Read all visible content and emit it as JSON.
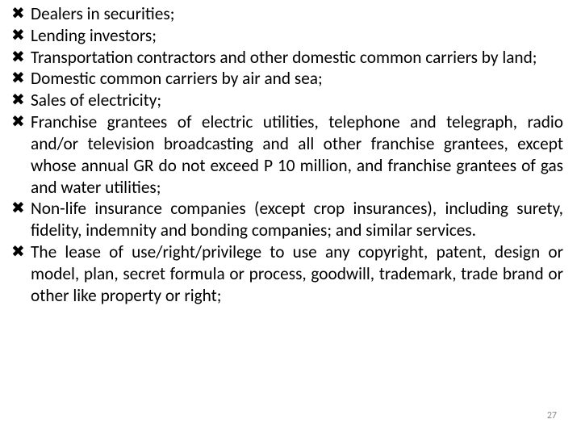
{
  "slide": {
    "text_color": "#000000",
    "bg_color": "#ffffff",
    "bullet_glyph": "✖",
    "font_size_pt": 16,
    "items": [
      "Dealers in securities;",
      "Lending investors;",
      "Transportation contractors and other domestic common carriers by land;",
      "Domestic common carriers by air and sea;",
      "Sales of electricity;",
      "Franchise grantees of electric utilities, telephone and telegraph, radio and/or television broadcasting and all other franchise grantees, except whose annual GR do not exceed P 10 million, and franchise grantees of gas and water utilities;",
      "Non-life insurance companies (except crop insurances), including surety, fidelity, indemnity and bonding companies; and similar services.",
      "The lease of use/right/privilege to use any copyright, patent, design or model, plan, secret formula or process, goodwill, trademark, trade brand or other like property or right;"
    ],
    "page_number": "27",
    "page_number_color": "#888888"
  }
}
